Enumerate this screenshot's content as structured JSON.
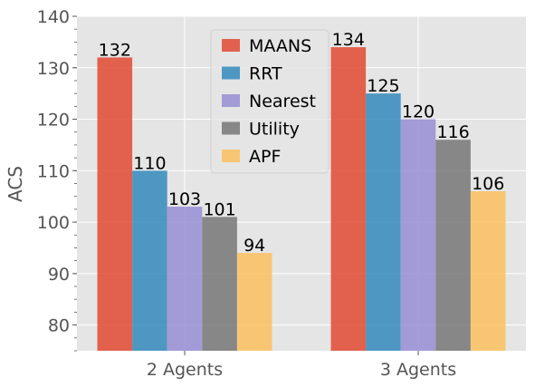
{
  "chart_data": {
    "type": "bar",
    "categories": [
      "2 Agents",
      "3 Agents"
    ],
    "series": [
      {
        "name": "MAANS",
        "color": "#E24A33",
        "values": [
          132,
          134
        ]
      },
      {
        "name": "RRT",
        "color": "#348ABD",
        "values": [
          110,
          125
        ]
      },
      {
        "name": "Nearest",
        "color": "#988ED5",
        "values": [
          103,
          120
        ]
      },
      {
        "name": "Utility",
        "color": "#777777",
        "values": [
          101,
          116
        ]
      },
      {
        "name": "APF",
        "color": "#FBC15E",
        "values": [
          94,
          106
        ]
      }
    ],
    "data_labels": [
      [
        "132",
        "134"
      ],
      [
        "110",
        "125"
      ],
      [
        "103",
        "120"
      ],
      [
        "101",
        "116"
      ],
      [
        "94",
        "106"
      ]
    ],
    "ylabel": "ACS",
    "xlabel": "",
    "ylim": [
      75,
      140
    ],
    "yticks": [
      80,
      90,
      100,
      110,
      120,
      130,
      140
    ],
    "ytick_labels": [
      "80",
      "90",
      "100",
      "110",
      "120",
      "130",
      "140"
    ],
    "grid": true,
    "legend_position": "top-center",
    "background_color": "#E5E5E5"
  }
}
